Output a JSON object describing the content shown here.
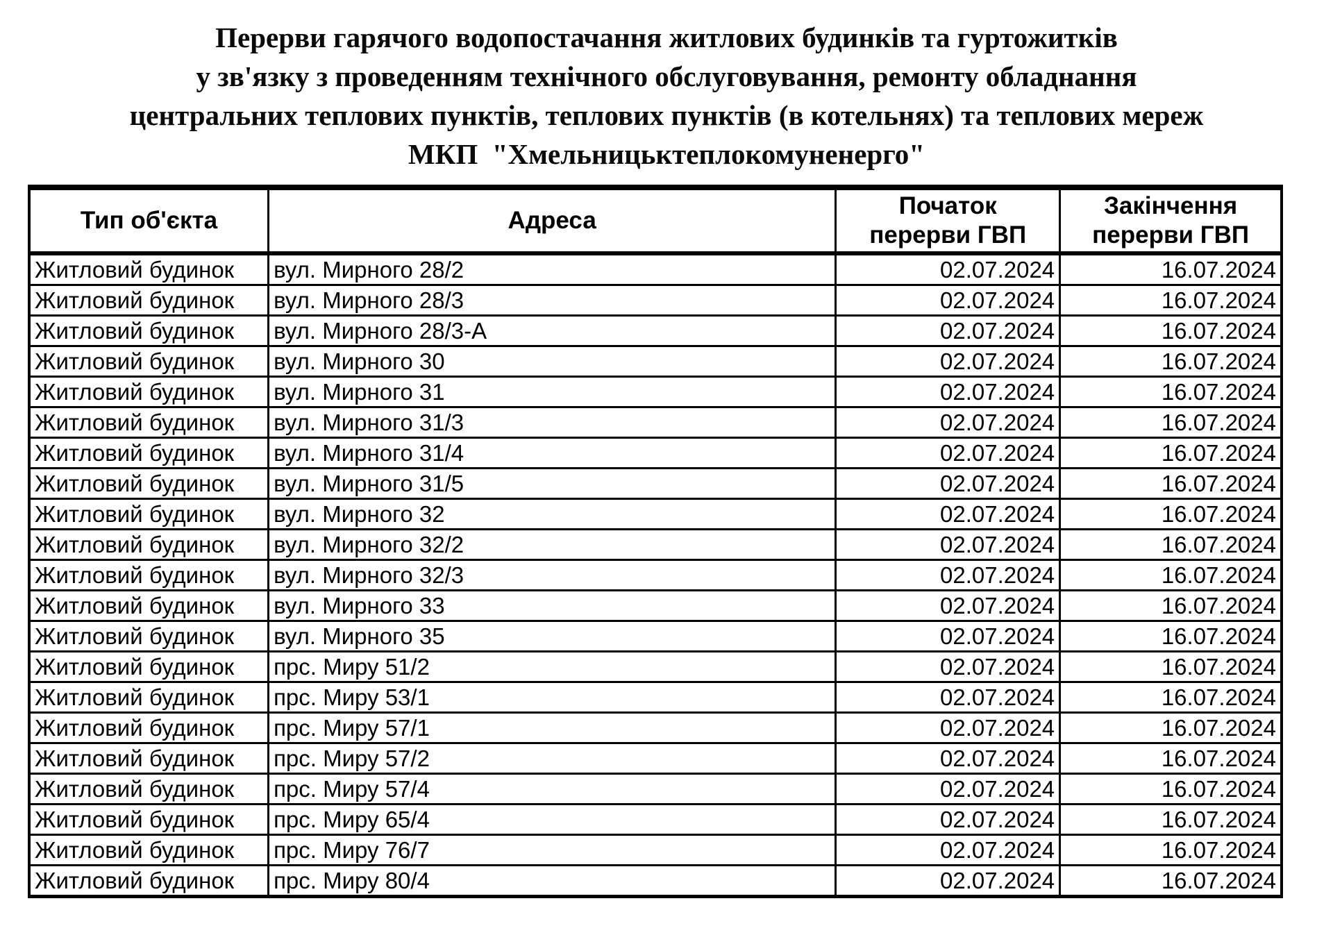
{
  "title": {
    "line1": "Перерви гарячого водопостачання житлових будинків та гуртожитків",
    "line2": "у зв'язку з проведенням технічного обслуговування, ремонту обладнання",
    "line3": "центральних теплових пунктів, теплових пунктів (в котельнях) та теплових мереж",
    "line4": "МКП  \"Хмельницьктеплокомуненерго\""
  },
  "table": {
    "headers": [
      "Тип об'єкта",
      "Адреса",
      "Початок\nперерви ГВП",
      "Закінчення\nперерви ГВП"
    ],
    "rows": [
      {
        "type": "Житловий будинок",
        "address": "вул. Мирного 28/2",
        "start": "02.07.2024",
        "end": "16.07.2024"
      },
      {
        "type": "Житловий будинок",
        "address": "вул. Мирного 28/3",
        "start": "02.07.2024",
        "end": "16.07.2024"
      },
      {
        "type": "Житловий будинок",
        "address": "вул. Мирного 28/3-А",
        "start": "02.07.2024",
        "end": "16.07.2024"
      },
      {
        "type": "Житловий будинок",
        "address": "вул. Мирного 30",
        "start": "02.07.2024",
        "end": "16.07.2024"
      },
      {
        "type": "Житловий будинок",
        "address": "вул. Мирного 31",
        "start": "02.07.2024",
        "end": "16.07.2024"
      },
      {
        "type": "Житловий будинок",
        "address": "вул. Мирного 31/3",
        "start": "02.07.2024",
        "end": "16.07.2024"
      },
      {
        "type": "Житловий будинок",
        "address": "вул. Мирного 31/4",
        "start": "02.07.2024",
        "end": "16.07.2024"
      },
      {
        "type": "Житловий будинок",
        "address": "вул. Мирного 31/5",
        "start": "02.07.2024",
        "end": "16.07.2024"
      },
      {
        "type": "Житловий будинок",
        "address": "вул. Мирного 32",
        "start": "02.07.2024",
        "end": "16.07.2024"
      },
      {
        "type": "Житловий будинок",
        "address": "вул. Мирного 32/2",
        "start": "02.07.2024",
        "end": "16.07.2024"
      },
      {
        "type": "Житловий будинок",
        "address": "вул. Мирного 32/3",
        "start": "02.07.2024",
        "end": "16.07.2024"
      },
      {
        "type": "Житловий будинок",
        "address": "вул. Мирного 33",
        "start": "02.07.2024",
        "end": "16.07.2024"
      },
      {
        "type": "Житловий будинок",
        "address": "вул. Мирного 35",
        "start": "02.07.2024",
        "end": "16.07.2024"
      },
      {
        "type": "Житловий будинок",
        "address": "прс. Миру 51/2",
        "start": "02.07.2024",
        "end": "16.07.2024"
      },
      {
        "type": "Житловий будинок",
        "address": "прс. Миру 53/1",
        "start": "02.07.2024",
        "end": "16.07.2024"
      },
      {
        "type": "Житловий будинок",
        "address": "прс. Миру 57/1",
        "start": "02.07.2024",
        "end": "16.07.2024"
      },
      {
        "type": "Житловий будинок",
        "address": "прс. Миру 57/2",
        "start": "02.07.2024",
        "end": "16.07.2024"
      },
      {
        "type": "Житловий будинок",
        "address": "прс. Миру 57/4",
        "start": "02.07.2024",
        "end": "16.07.2024"
      },
      {
        "type": "Житловий будинок",
        "address": "прс. Миру 65/4",
        "start": "02.07.2024",
        "end": "16.07.2024"
      },
      {
        "type": "Житловий будинок",
        "address": "прс. Миру 76/7",
        "start": "02.07.2024",
        "end": "16.07.2024"
      },
      {
        "type": "Житловий будинок",
        "address": "прс. Миру 80/4",
        "start": "02.07.2024",
        "end": "16.07.2024"
      }
    ]
  },
  "colors": {
    "text": "#000000",
    "border": "#000000",
    "background": "#ffffff"
  }
}
